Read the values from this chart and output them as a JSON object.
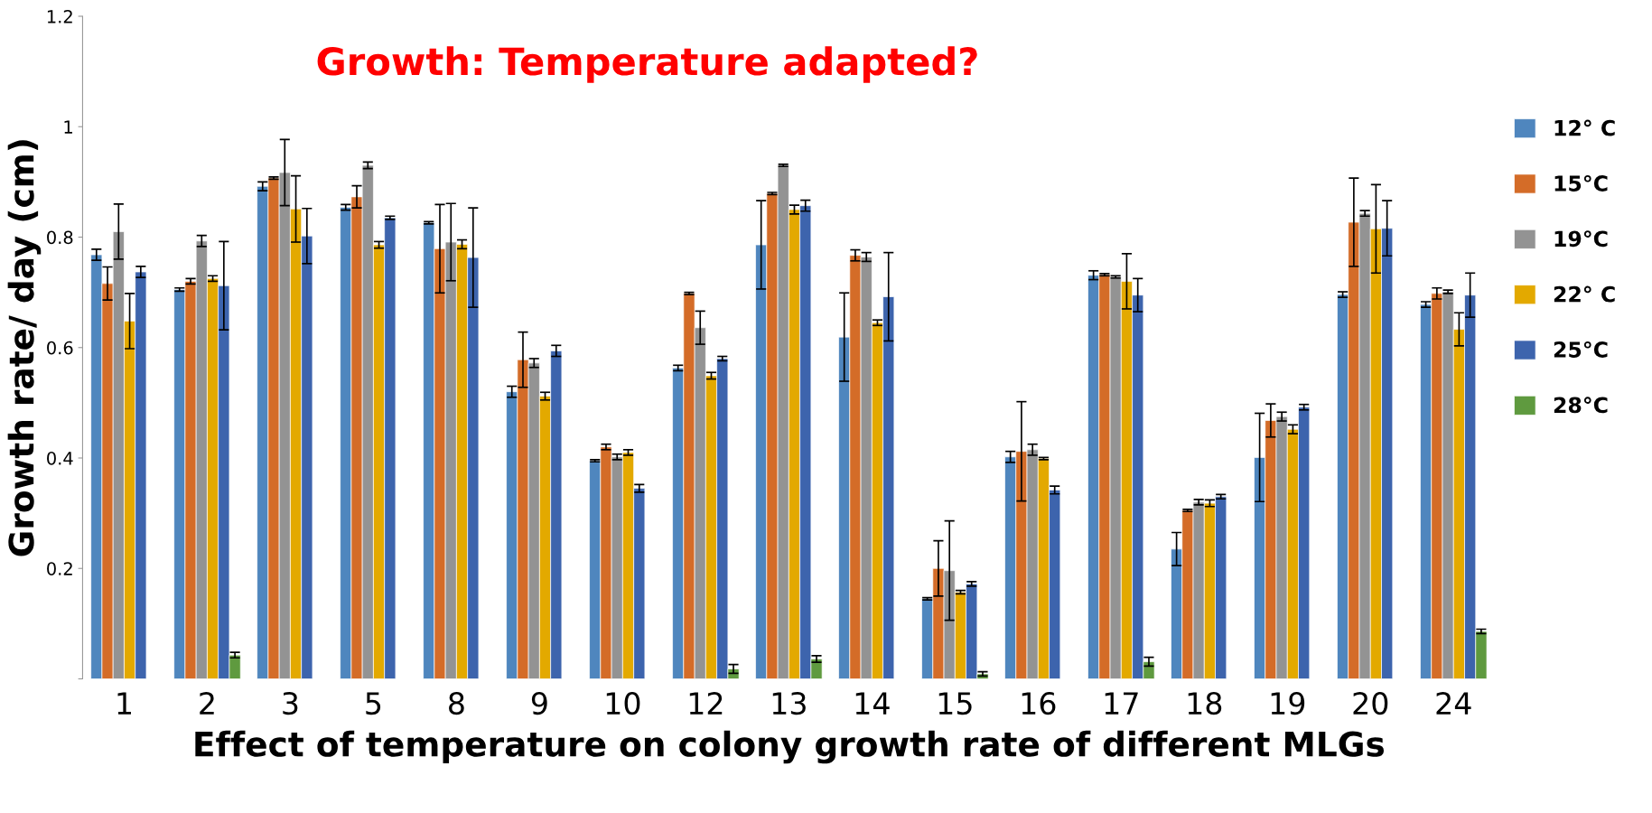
{
  "chart_data": {
    "type": "bar",
    "title": "Growth: Temperature adapted?",
    "xlabel": "Effect of temperature on colony growth rate of different MLGs",
    "ylabel": "Growth rate/ day (cm)",
    "categories": [
      "1",
      "2",
      "3",
      "5",
      "8",
      "9",
      "10",
      "12",
      "13",
      "14",
      "15",
      "16",
      "17",
      "18",
      "19",
      "20",
      "24"
    ],
    "series": [
      {
        "name": "12° C",
        "color": "#4f86be",
        "values": [
          0.768,
          0.705,
          0.892,
          0.854,
          0.826,
          0.52,
          0.395,
          0.563,
          0.786,
          0.619,
          0.145,
          0.402,
          0.731,
          0.235,
          0.401,
          0.696,
          0.678
        ],
        "errors": [
          0.01,
          0.003,
          0.008,
          0.005,
          0.002,
          0.01,
          0.002,
          0.005,
          0.08,
          0.08,
          0.002,
          0.01,
          0.008,
          0.03,
          0.08,
          0.005,
          0.005
        ]
      },
      {
        "name": "15°C",
        "color": "#d46c28",
        "values": [
          0.716,
          0.72,
          0.907,
          0.873,
          0.779,
          0.578,
          0.42,
          0.698,
          0.879,
          0.767,
          0.2,
          0.412,
          0.732,
          0.305,
          0.468,
          0.827,
          0.698
        ],
        "errors": [
          0.03,
          0.005,
          0.002,
          0.02,
          0.08,
          0.05,
          0.005,
          0.002,
          0.002,
          0.01,
          0.05,
          0.09,
          0.002,
          0.002,
          0.03,
          0.08,
          0.01
        ]
      },
      {
        "name": "19°C",
        "color": "#939393",
        "values": [
          0.81,
          0.793,
          0.917,
          0.93,
          0.791,
          0.572,
          0.402,
          0.636,
          0.93,
          0.764,
          0.196,
          0.415,
          0.728,
          0.32,
          0.475,
          0.843,
          0.701
        ],
        "errors": [
          0.05,
          0.01,
          0.06,
          0.006,
          0.07,
          0.008,
          0.005,
          0.03,
          0.002,
          0.008,
          0.09,
          0.01,
          0.002,
          0.005,
          0.008,
          0.005,
          0.003
        ]
      },
      {
        "name": "22° C",
        "color": "#e3a900",
        "values": [
          0.648,
          0.725,
          0.851,
          0.786,
          0.787,
          0.512,
          0.41,
          0.549,
          0.85,
          0.645,
          0.157,
          0.399,
          0.72,
          0.318,
          0.452,
          0.815,
          0.633
        ],
        "errors": [
          0.05,
          0.005,
          0.06,
          0.006,
          0.008,
          0.007,
          0.005,
          0.006,
          0.008,
          0.005,
          0.003,
          0.002,
          0.05,
          0.006,
          0.008,
          0.08,
          0.03
        ]
      },
      {
        "name": "25°C",
        "color": "#3d64ad",
        "values": [
          0.737,
          0.712,
          0.802,
          0.835,
          0.763,
          0.594,
          0.345,
          0.58,
          0.857,
          0.692,
          0.172,
          0.342,
          0.695,
          0.33,
          0.492,
          0.816,
          0.695
        ],
        "errors": [
          0.01,
          0.08,
          0.05,
          0.003,
          0.09,
          0.01,
          0.007,
          0.004,
          0.01,
          0.08,
          0.004,
          0.007,
          0.03,
          0.004,
          0.005,
          0.05,
          0.04
        ]
      },
      {
        "name": "28°C",
        "color": "#5f9a3f",
        "values": [
          null,
          0.043,
          null,
          null,
          null,
          null,
          null,
          0.018,
          0.036,
          null,
          0.009,
          null,
          0.031,
          null,
          null,
          null,
          0.086
        ],
        "errors": [
          null,
          0.005,
          null,
          null,
          null,
          null,
          null,
          0.008,
          0.006,
          null,
          0.004,
          null,
          0.008,
          null,
          null,
          null,
          0.004
        ]
      }
    ],
    "ylim": [
      0,
      1.2
    ],
    "yticks": [
      {
        "value": 0,
        "label": null
      },
      0.2,
      0.4,
      0.6,
      0.8,
      1,
      1.2
    ],
    "legend": "right",
    "grid": false
  }
}
